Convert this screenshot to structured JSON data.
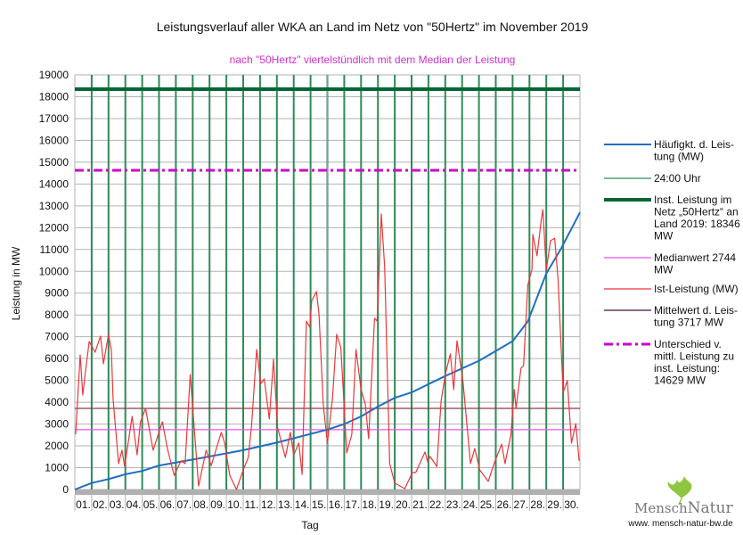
{
  "chart_data": {
    "type": "line",
    "title": "Leistungsverlauf aller WKA an Land im Netz von \"50Hertz\" im November 2019",
    "subtitle": "nach \"50Hertz\" viertelstündlich mit dem Median der Leistung",
    "xlabel": "Tag",
    "ylabel": "Leistung in MW",
    "ylim": [
      0,
      19000
    ],
    "xlim": [
      0,
      30
    ],
    "yticks": [
      0,
      1000,
      2000,
      3000,
      4000,
      5000,
      6000,
      7000,
      8000,
      9000,
      10000,
      11000,
      12000,
      13000,
      14000,
      15000,
      16000,
      17000,
      18000,
      19000
    ],
    "xtick_labels": [
      "01.",
      "02.",
      "03.",
      "04.",
      "05.",
      "06.",
      "07.",
      "08.",
      "09.",
      "10.",
      "11.",
      "12.",
      "13.",
      "14.",
      "15.",
      "16.",
      "17.",
      "18.",
      "19.",
      "20.",
      "21.",
      "22.",
      "23.",
      "24.",
      "25.",
      "26.",
      "27.",
      "28.",
      "29.",
      "30."
    ],
    "grid": true,
    "legend_position": "right",
    "median_day_marker": 15,
    "series": [
      {
        "name": "Häufigkt. d. Leis-tung (MW)",
        "legend_lines": [
          "Häufigkt. d. Leis-",
          "tung (MW)"
        ],
        "color": "#1f6fc0",
        "kind": "line",
        "points": [
          [
            0,
            0
          ],
          [
            1,
            300
          ],
          [
            2,
            480
          ],
          [
            3,
            700
          ],
          [
            4,
            850
          ],
          [
            5,
            1100
          ],
          [
            7.7,
            1470
          ],
          [
            10,
            1800
          ],
          [
            12,
            2150
          ],
          [
            13,
            2350
          ],
          [
            15,
            2744
          ],
          [
            16,
            3000
          ],
          [
            17,
            3350
          ],
          [
            18,
            3800
          ],
          [
            19,
            4200
          ],
          [
            20,
            4450
          ],
          [
            22,
            5200
          ],
          [
            24,
            5900
          ],
          [
            26,
            6800
          ],
          [
            26.9,
            7700
          ],
          [
            28,
            9900
          ],
          [
            28.9,
            11070
          ],
          [
            30,
            12700
          ]
        ]
      },
      {
        "name": "24:00 Uhr",
        "legend_lines": [
          "24:00 Uhr"
        ],
        "color": "#2e8b57",
        "kind": "day-separators"
      },
      {
        "name": "Inst. Leistung im Netz „50Hertz“ an Land 2019: 18346 MW",
        "legend_lines": [
          "Inst. Leistung im",
          "Netz „50Hertz“ an",
          "Land 2019: 18346",
          "MW"
        ],
        "color": "#006633",
        "kind": "hline",
        "value": 18346
      },
      {
        "name": "Medianwert 2744 MW",
        "legend_lines": [
          "Medianwert 2744",
          "MW"
        ],
        "color": "#ee55ee",
        "kind": "hline",
        "value": 2744
      },
      {
        "name": "Ist-Leistung (MW)",
        "legend_lines": [
          "Ist-Leistung (MW)"
        ],
        "color": "#e8383d",
        "kind": "line",
        "points": [
          [
            0.05,
            2530
          ],
          [
            0.32,
            6170
          ],
          [
            0.47,
            4330
          ],
          [
            0.63,
            5390
          ],
          [
            0.85,
            6780
          ],
          [
            1.2,
            6290
          ],
          [
            1.53,
            7030
          ],
          [
            1.7,
            5760
          ],
          [
            2.0,
            7110
          ],
          [
            2.17,
            6380
          ],
          [
            2.27,
            4170
          ],
          [
            2.6,
            1190
          ],
          [
            2.8,
            1800
          ],
          [
            2.96,
            1060
          ],
          [
            3.4,
            3350
          ],
          [
            3.7,
            1590
          ],
          [
            3.9,
            3100
          ],
          [
            4.2,
            3720
          ],
          [
            4.65,
            1800
          ],
          [
            5.2,
            3100
          ],
          [
            5.5,
            1880
          ],
          [
            5.9,
            650
          ],
          [
            6.3,
            1310
          ],
          [
            6.55,
            1190
          ],
          [
            6.85,
            5270
          ],
          [
            7.0,
            3760
          ],
          [
            7.35,
            160
          ],
          [
            7.8,
            1800
          ],
          [
            8.1,
            1100
          ],
          [
            8.7,
            2620
          ],
          [
            8.9,
            2130
          ],
          [
            9.2,
            650
          ],
          [
            9.6,
            0
          ],
          [
            10.0,
            900
          ],
          [
            10.3,
            1470
          ],
          [
            10.5,
            2940
          ],
          [
            10.8,
            6420
          ],
          [
            11.05,
            4860
          ],
          [
            11.25,
            5070
          ],
          [
            11.55,
            3230
          ],
          [
            11.8,
            5970
          ],
          [
            12.05,
            2820
          ],
          [
            12.5,
            1470
          ],
          [
            12.8,
            2620
          ],
          [
            13.0,
            1590
          ],
          [
            13.3,
            2130
          ],
          [
            13.5,
            690
          ],
          [
            13.75,
            7720
          ],
          [
            13.95,
            7440
          ],
          [
            14.07,
            8660
          ],
          [
            14.35,
            9070
          ],
          [
            14.5,
            8010
          ],
          [
            14.75,
            3920
          ],
          [
            15.0,
            2130
          ],
          [
            15.3,
            4170
          ],
          [
            15.55,
            7110
          ],
          [
            15.8,
            6500
          ],
          [
            16.15,
            1680
          ],
          [
            16.45,
            2530
          ],
          [
            16.7,
            6420
          ],
          [
            17.0,
            4580
          ],
          [
            17.25,
            3920
          ],
          [
            17.45,
            2330
          ],
          [
            17.8,
            7850
          ],
          [
            17.95,
            7720
          ],
          [
            18.2,
            12630
          ],
          [
            18.4,
            10180
          ],
          [
            18.7,
            1190
          ],
          [
            19.0,
            290
          ],
          [
            19.6,
            40
          ],
          [
            20.05,
            780
          ],
          [
            20.25,
            780
          ],
          [
            20.8,
            1720
          ],
          [
            20.95,
            1270
          ],
          [
            21.1,
            1510
          ],
          [
            21.5,
            1060
          ],
          [
            21.75,
            4050
          ],
          [
            22.0,
            5270
          ],
          [
            22.3,
            6210
          ],
          [
            22.5,
            4580
          ],
          [
            22.7,
            6820
          ],
          [
            23.05,
            4990
          ],
          [
            23.5,
            1190
          ],
          [
            23.75,
            1880
          ],
          [
            24.05,
            900
          ],
          [
            24.55,
            370
          ],
          [
            24.9,
            1190
          ],
          [
            25.35,
            2080
          ],
          [
            25.55,
            1190
          ],
          [
            25.9,
            2530
          ],
          [
            26.1,
            4580
          ],
          [
            26.2,
            3720
          ],
          [
            26.5,
            5560
          ],
          [
            26.65,
            5680
          ],
          [
            26.9,
            9360
          ],
          [
            27.15,
            10090
          ],
          [
            27.2,
            11690
          ],
          [
            27.45,
            10710
          ],
          [
            27.7,
            12340
          ],
          [
            27.8,
            12830
          ],
          [
            28.0,
            10050
          ],
          [
            28.25,
            11400
          ],
          [
            28.5,
            11520
          ],
          [
            28.7,
            9640
          ],
          [
            29.0,
            4450
          ],
          [
            29.25,
            4990
          ],
          [
            29.5,
            2130
          ],
          [
            29.75,
            3020
          ],
          [
            29.95,
            1310
          ]
        ]
      },
      {
        "name": "Mittelwert d. Leistung 3717 MW",
        "legend_lines": [
          "Mittelwert d. Leis-",
          "tung 3717 MW"
        ],
        "color": "#8b3a4a",
        "legend_color": "#4b0f3f",
        "kind": "hline",
        "value": 3717
      },
      {
        "name": "Unterschied v. mittl. Leistung zu inst. Leistung: 14629 MW",
        "legend_lines": [
          "Unterschied v.",
          "mittl. Leistung zu",
          "inst. Leistung:",
          "14629 MW"
        ],
        "color": "#cc00cc",
        "kind": "hline-dashdot",
        "value": 14629
      }
    ]
  },
  "logo": {
    "text_part1": "Mensch",
    "text_part2": "Natur",
    "url": "www. mensch-natur-bw.de",
    "leaf_color": "#8dc63f"
  }
}
